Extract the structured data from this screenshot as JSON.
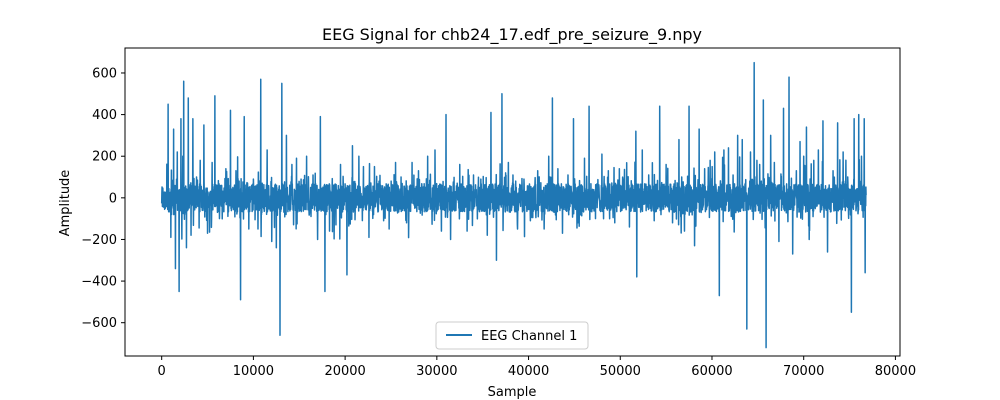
{
  "chart_data": {
    "type": "line",
    "title": "EEG Signal for chb24_17.edf_pre_seizure_9.npy",
    "xlabel": "Sample",
    "ylabel": "Amplitude",
    "xlim": [
      -4000,
      80500
    ],
    "ylim": [
      -760,
      720
    ],
    "xticks": [
      0,
      10000,
      20000,
      30000,
      40000,
      50000,
      60000,
      70000,
      80000
    ],
    "xtick_labels": [
      "0",
      "10000",
      "20000",
      "30000",
      "40000",
      "50000",
      "60000",
      "70000",
      "80000"
    ],
    "yticks": [
      -600,
      -400,
      -200,
      0,
      200,
      400,
      600
    ],
    "ytick_labels": [
      "−600",
      "−400",
      "−200",
      "0",
      "200",
      "400",
      "600"
    ],
    "grid": false,
    "legend_position": "bottom-center",
    "series_color": "#1f77b4",
    "series": [
      {
        "name": "EEG Channel 1",
        "x_range": [
          0,
          76800
        ],
        "baseline_band": [
          -80,
          80
        ],
        "spikes": [
          [
            700,
            450
          ],
          [
            1000,
            -190
          ],
          [
            1300,
            330
          ],
          [
            1500,
            -340
          ],
          [
            1700,
            220
          ],
          [
            1900,
            -450
          ],
          [
            2100,
            380
          ],
          [
            2300,
            200
          ],
          [
            2400,
            560
          ],
          [
            2700,
            -240
          ],
          [
            2900,
            480
          ],
          [
            3200,
            -180
          ],
          [
            3400,
            380
          ],
          [
            3800,
            100
          ],
          [
            4200,
            180
          ],
          [
            4600,
            350
          ],
          [
            5000,
            -170
          ],
          [
            5500,
            170
          ],
          [
            5800,
            490
          ],
          [
            6300,
            -100
          ],
          [
            7000,
            140
          ],
          [
            7500,
            420
          ],
          [
            8100,
            130
          ],
          [
            8600,
            -490
          ],
          [
            9000,
            390
          ],
          [
            9500,
            -150
          ],
          [
            10000,
            90
          ],
          [
            10500,
            -150
          ],
          [
            10800,
            570
          ],
          [
            11500,
            230
          ],
          [
            12000,
            -210
          ],
          [
            12500,
            -240
          ],
          [
            12900,
            -660
          ],
          [
            13100,
            550
          ],
          [
            13600,
            300
          ],
          [
            14200,
            160
          ],
          [
            14700,
            190
          ],
          [
            15200,
            90
          ],
          [
            15800,
            200
          ],
          [
            16500,
            110
          ],
          [
            17000,
            -200
          ],
          [
            17300,
            390
          ],
          [
            17800,
            -450
          ],
          [
            18300,
            -160
          ],
          [
            19000,
            -130
          ],
          [
            19500,
            160
          ],
          [
            20200,
            -370
          ],
          [
            20800,
            250
          ],
          [
            21500,
            200
          ],
          [
            22000,
            150
          ],
          [
            22600,
            -190
          ],
          [
            23200,
            150
          ],
          [
            23700,
            80
          ],
          [
            24200,
            -110
          ],
          [
            24800,
            -150
          ],
          [
            25500,
            170
          ],
          [
            26100,
            100
          ],
          [
            26700,
            -120
          ],
          [
            27300,
            170
          ],
          [
            28000,
            130
          ],
          [
            29000,
            200
          ],
          [
            29800,
            230
          ],
          [
            30500,
            -160
          ],
          [
            31000,
            400
          ],
          [
            31500,
            -200
          ],
          [
            32500,
            160
          ],
          [
            33300,
            -160
          ],
          [
            34000,
            110
          ],
          [
            34800,
            90
          ],
          [
            35500,
            -180
          ],
          [
            35900,
            410
          ],
          [
            36500,
            -300
          ],
          [
            37100,
            500
          ],
          [
            37800,
            170
          ],
          [
            38300,
            110
          ],
          [
            38800,
            -150
          ],
          [
            39500,
            90
          ],
          [
            40200,
            -110
          ],
          [
            41000,
            130
          ],
          [
            41700,
            -150
          ],
          [
            42200,
            200
          ],
          [
            42600,
            480
          ],
          [
            43200,
            140
          ],
          [
            43700,
            -170
          ],
          [
            44300,
            110
          ],
          [
            44900,
            380
          ],
          [
            45400,
            -120
          ],
          [
            46100,
            190
          ],
          [
            46600,
            440
          ],
          [
            47300,
            -100
          ],
          [
            48000,
            210
          ],
          [
            48700,
            130
          ],
          [
            49400,
            -120
          ],
          [
            49900,
            140
          ],
          [
            50400,
            90
          ],
          [
            51000,
            -140
          ],
          [
            51700,
            320
          ],
          [
            51800,
            -380
          ],
          [
            52400,
            230
          ],
          [
            53100,
            110
          ],
          [
            53700,
            -110
          ],
          [
            54300,
            440
          ],
          [
            55000,
            160
          ],
          [
            55700,
            -120
          ],
          [
            56400,
            280
          ],
          [
            57000,
            -160
          ],
          [
            57500,
            440
          ],
          [
            58100,
            -230
          ],
          [
            58600,
            330
          ],
          [
            59200,
            140
          ],
          [
            59800,
            180
          ],
          [
            60300,
            220
          ],
          [
            60800,
            -470
          ],
          [
            61300,
            230
          ],
          [
            61800,
            240
          ],
          [
            62300,
            110
          ],
          [
            62800,
            300
          ],
          [
            63300,
            280
          ],
          [
            63800,
            -630
          ],
          [
            64200,
            220
          ],
          [
            64600,
            650
          ],
          [
            64900,
            180
          ],
          [
            65200,
            160
          ],
          [
            65600,
            470
          ],
          [
            65900,
            -720
          ],
          [
            66400,
            300
          ],
          [
            66800,
            170
          ],
          [
            67300,
            -210
          ],
          [
            67800,
            430
          ],
          [
            68400,
            580
          ],
          [
            68800,
            -270
          ],
          [
            69200,
            130
          ],
          [
            69600,
            270
          ],
          [
            70000,
            200
          ],
          [
            70300,
            340
          ],
          [
            70600,
            -200
          ],
          [
            71100,
            180
          ],
          [
            71600,
            230
          ],
          [
            72100,
            370
          ],
          [
            72600,
            -260
          ],
          [
            73200,
            130
          ],
          [
            73700,
            360
          ],
          [
            74300,
            220
          ],
          [
            74800,
            100
          ],
          [
            75200,
            -550
          ],
          [
            75500,
            380
          ],
          [
            76000,
            400
          ],
          [
            76300,
            200
          ],
          [
            76600,
            380
          ],
          [
            76700,
            -360
          ]
        ]
      }
    ]
  }
}
